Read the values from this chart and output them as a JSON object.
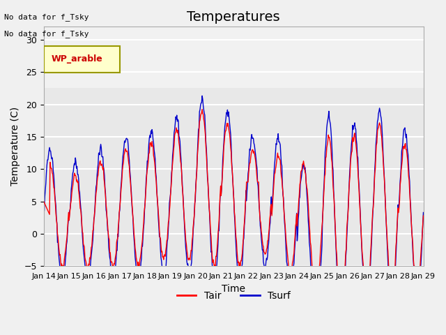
{
  "title": "Temperatures",
  "xlabel": "Time",
  "ylabel": "Temperature (C)",
  "ylim": [
    -5,
    32
  ],
  "yticks": [
    -5,
    0,
    5,
    10,
    15,
    20,
    25,
    30
  ],
  "xlim_days": [
    0,
    15
  ],
  "x_tick_labels": [
    "Jan 14",
    "Jan 15",
    "Jan 16",
    "Jan 17",
    "Jan 18",
    "Jan 19",
    "Jan 20",
    "Jan 21",
    "Jan 22",
    "Jan 23",
    "Jan 24",
    "Jan 25",
    "Jan 26",
    "Jan 27",
    "Jan 28",
    "Jan 29"
  ],
  "color_tair": "#ff0000",
  "color_tsurf": "#0000cc",
  "legend_label_tair": "Tair",
  "legend_label_tsurf": "Tsurf",
  "annotation_line1": "No data for f_Tsky",
  "annotation_line2": "No data for f_Tsky",
  "legend_box_text": "WP_arable",
  "legend_box_facecolor": "#ffffcc",
  "legend_box_edgecolor": "#999900",
  "background_color": "#e8e8e8",
  "title_fontsize": 14,
  "axis_fontsize": 10,
  "tick_fontsize": 9,
  "grid_color": "#ffffff",
  "shaded_region": [
    22.5,
    32
  ]
}
